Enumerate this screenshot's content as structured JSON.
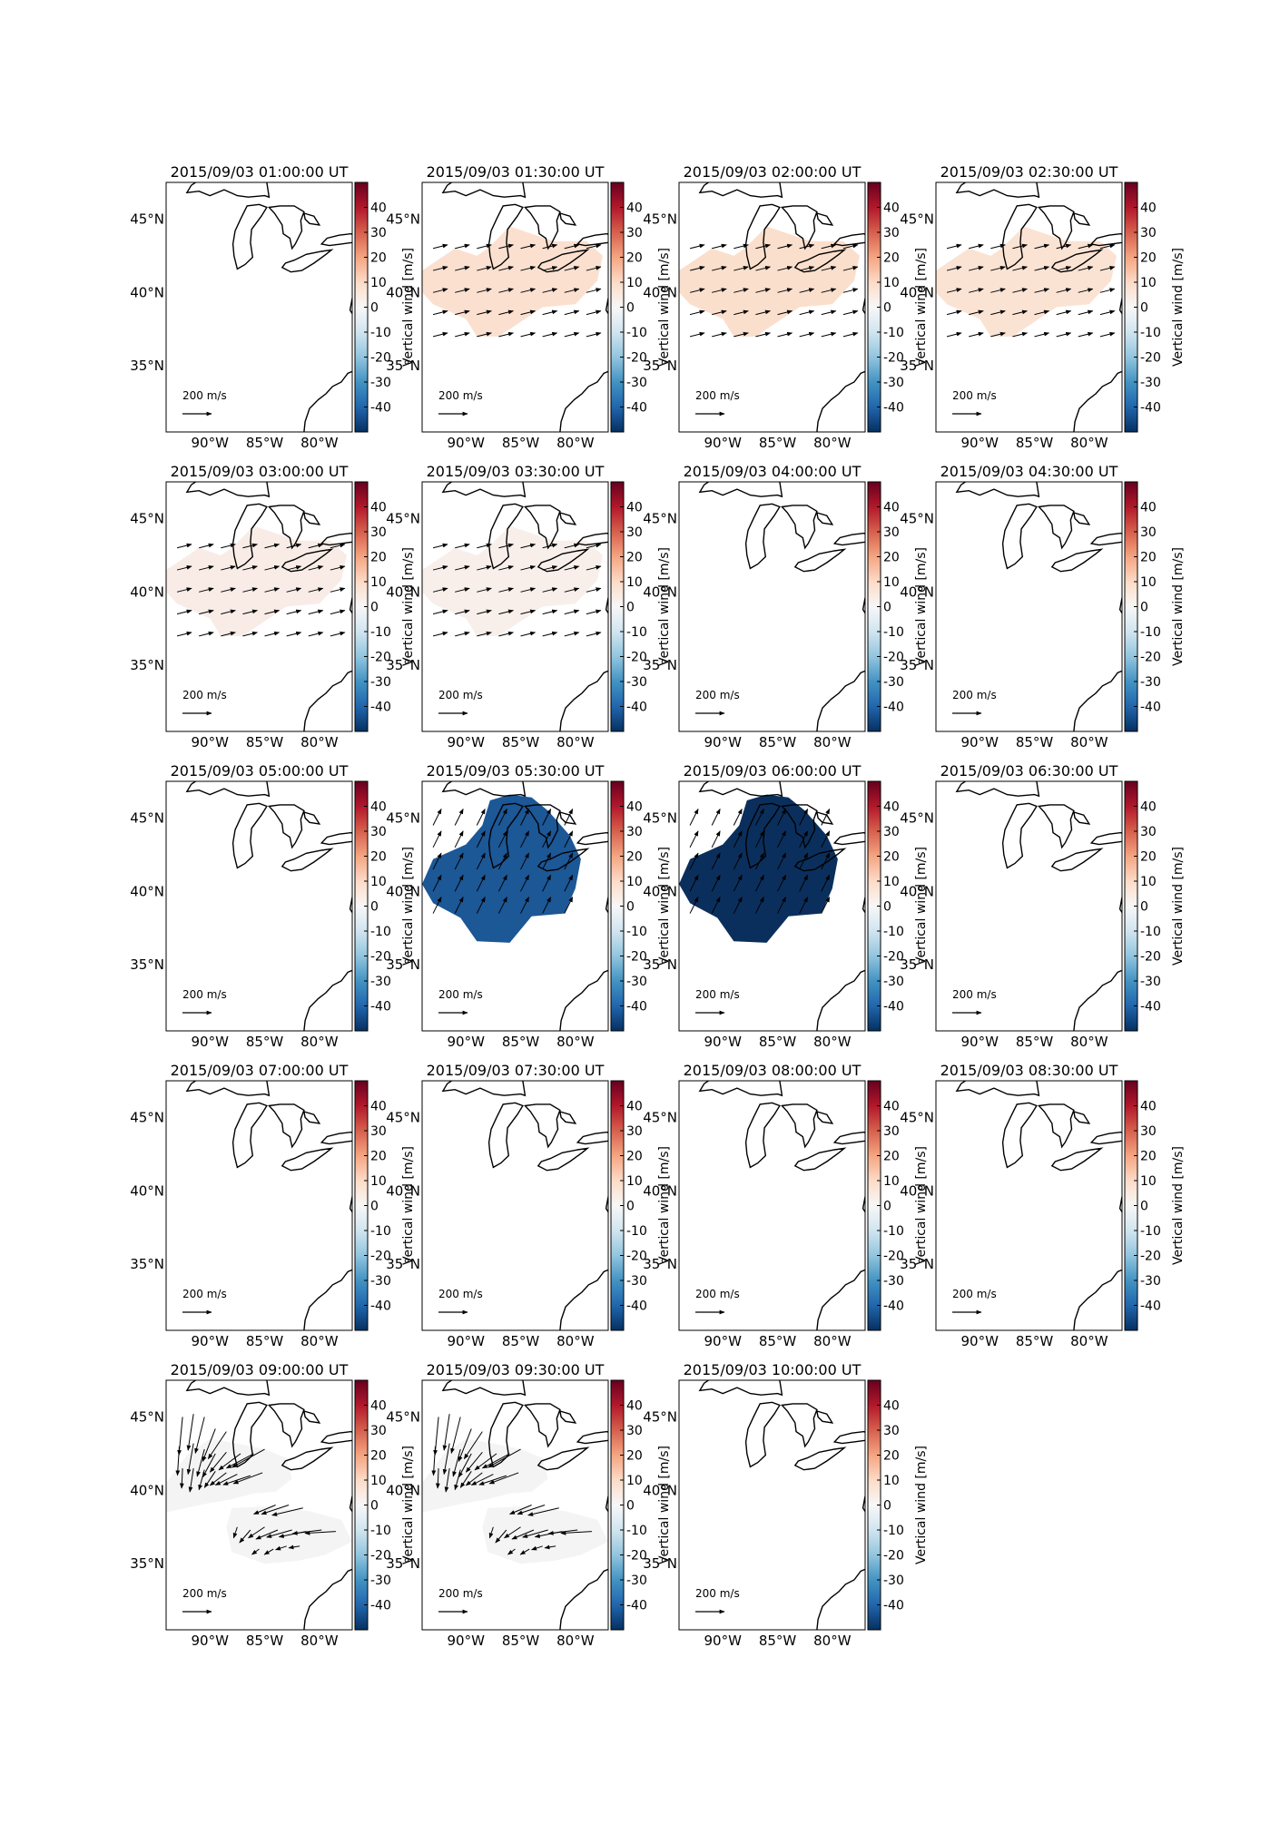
{
  "figure": {
    "colorbar_label": "Vertical wind [m/s]",
    "colorbar_ticks": [
      40,
      30,
      20,
      10,
      0,
      -10,
      -20,
      -30,
      -40
    ],
    "colorbar_range": [
      -50,
      50
    ],
    "colorbar_colors": [
      "#053061",
      "#2166ac",
      "#4393c3",
      "#92c5de",
      "#d1e5f0",
      "#f7f7f7",
      "#fddbc7",
      "#f4a582",
      "#d6604d",
      "#b2182b",
      "#67001f"
    ],
    "lat_ticks": [
      "45°N",
      "40°N",
      "35°N"
    ],
    "lon_ticks": [
      "90°W",
      "85°W",
      "80°W"
    ],
    "scale_arrow_label": "200 m/s",
    "land_outline": "Great Lakes and U.S. east coast coastline outline"
  },
  "chart_data": [
    {
      "type": "heatmap",
      "title": "2015/09/03 01:00:00 UT",
      "vertical_wind": null,
      "wind_vectors": "none"
    },
    {
      "type": "heatmap",
      "title": "2015/09/03 01:30:00 UT",
      "vertical_wind": 7,
      "wind_vectors": "small",
      "fill_color": "#fbe0d0"
    },
    {
      "type": "heatmap",
      "title": "2015/09/03 02:00:00 UT",
      "vertical_wind": 8,
      "wind_vectors": "small",
      "fill_color": "#fbdfcd"
    },
    {
      "type": "heatmap",
      "title": "2015/09/03 02:30:00 UT",
      "vertical_wind": 7,
      "wind_vectors": "small",
      "fill_color": "#fbe3d4"
    },
    {
      "type": "heatmap",
      "title": "2015/09/03 03:00:00 UT",
      "vertical_wind": 3,
      "wind_vectors": "small",
      "fill_color": "#f9ece6"
    },
    {
      "type": "heatmap",
      "title": "2015/09/03 03:30:00 UT",
      "vertical_wind": 2,
      "wind_vectors": "small",
      "fill_color": "#f8efeb"
    },
    {
      "type": "heatmap",
      "title": "2015/09/03 04:00:00 UT",
      "vertical_wind": null,
      "wind_vectors": "none"
    },
    {
      "type": "heatmap",
      "title": "2015/09/03 04:30:00 UT",
      "vertical_wind": null,
      "wind_vectors": "none"
    },
    {
      "type": "heatmap",
      "title": "2015/09/03 05:00:00 UT",
      "vertical_wind": null,
      "wind_vectors": "none"
    },
    {
      "type": "heatmap",
      "title": "2015/09/03 05:30:00 UT",
      "vertical_wind": -35,
      "wind_vectors": "medium",
      "fill_color": "#1c5796"
    },
    {
      "type": "heatmap",
      "title": "2015/09/03 06:00:00 UT",
      "vertical_wind": -45,
      "wind_vectors": "medium",
      "fill_color": "#0b2f5c"
    },
    {
      "type": "heatmap",
      "title": "2015/09/03 06:30:00 UT",
      "vertical_wind": null,
      "wind_vectors": "none"
    },
    {
      "type": "heatmap",
      "title": "2015/09/03 07:00:00 UT",
      "vertical_wind": null,
      "wind_vectors": "none"
    },
    {
      "type": "heatmap",
      "title": "2015/09/03 07:30:00 UT",
      "vertical_wind": null,
      "wind_vectors": "none"
    },
    {
      "type": "heatmap",
      "title": "2015/09/03 08:00:00 UT",
      "vertical_wind": null,
      "wind_vectors": "none"
    },
    {
      "type": "heatmap",
      "title": "2015/09/03 08:30:00 UT",
      "vertical_wind": null,
      "wind_vectors": "none"
    },
    {
      "type": "heatmap",
      "title": "2015/09/03 09:00:00 UT",
      "vertical_wind": 0,
      "wind_vectors": "large",
      "fill_color": "#f4f4f4"
    },
    {
      "type": "heatmap",
      "title": "2015/09/03 09:30:00 UT",
      "vertical_wind": 0,
      "wind_vectors": "large",
      "fill_color": "#f4f4f4"
    },
    {
      "type": "heatmap",
      "title": "2015/09/03 10:00:00 UT",
      "vertical_wind": null,
      "wind_vectors": "none"
    }
  ]
}
